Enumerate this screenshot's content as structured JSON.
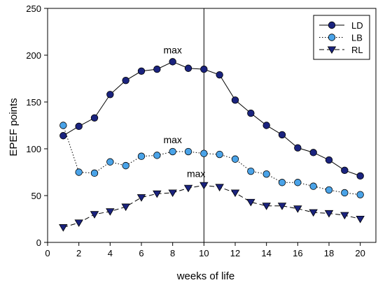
{
  "chart_data": {
    "type": "line",
    "xlabel": "weeks of life",
    "ylabel": "EPEF points",
    "xlim": [
      0,
      21
    ],
    "ylim": [
      0,
      250
    ],
    "xticks": [
      0,
      2,
      4,
      6,
      8,
      10,
      12,
      14,
      16,
      18,
      20
    ],
    "yticks": [
      0,
      50,
      100,
      150,
      200,
      250
    ],
    "grid": false,
    "legend_position": "top-right",
    "vline_x": 10,
    "x": [
      1,
      2,
      3,
      4,
      5,
      6,
      7,
      8,
      9,
      10,
      11,
      12,
      13,
      14,
      15,
      16,
      17,
      18,
      19,
      20
    ],
    "series": [
      {
        "name": "LD",
        "marker": "circle",
        "line": "solid",
        "color": "#1a237e",
        "values": [
          114,
          124,
          133,
          158,
          173,
          183,
          185,
          193,
          186,
          185,
          179,
          152,
          138,
          125,
          115,
          101,
          96,
          88,
          77,
          71
        ]
      },
      {
        "name": "LB",
        "marker": "circle",
        "line": "dotted",
        "color": "#4aa3e8",
        "values": [
          125,
          75,
          74,
          86,
          82,
          92,
          93,
          97,
          97,
          95,
          94,
          89,
          76,
          73,
          64,
          64,
          60,
          56,
          53,
          51
        ]
      },
      {
        "name": "RL",
        "marker": "triangle-down",
        "line": "dashed",
        "color": "#1a237e",
        "values": [
          16,
          21,
          30,
          33,
          38,
          48,
          52,
          53,
          58,
          61,
          59,
          53,
          43,
          39,
          39,
          36,
          32,
          31,
          29,
          25
        ]
      }
    ],
    "annotations": [
      {
        "text": "max",
        "x": 8,
        "y": 193
      },
      {
        "text": "max",
        "x": 8,
        "y": 97
      },
      {
        "text": "max",
        "x": 9.5,
        "y": 61
      }
    ]
  }
}
